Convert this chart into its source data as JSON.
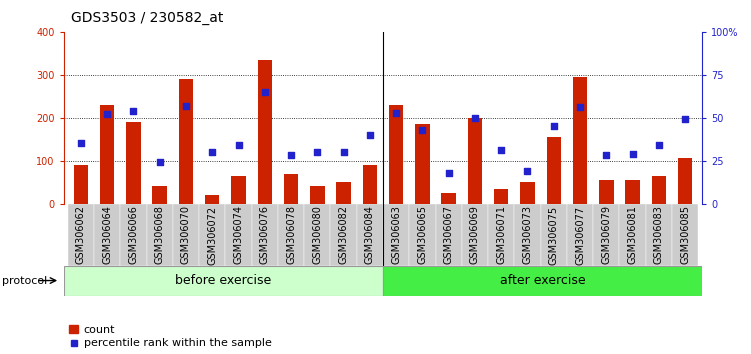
{
  "title": "GDS3503 / 230582_at",
  "categories": [
    "GSM306062",
    "GSM306064",
    "GSM306066",
    "GSM306068",
    "GSM306070",
    "GSM306072",
    "GSM306074",
    "GSM306076",
    "GSM306078",
    "GSM306080",
    "GSM306082",
    "GSM306084",
    "GSM306063",
    "GSM306065",
    "GSM306067",
    "GSM306069",
    "GSM306071",
    "GSM306073",
    "GSM306075",
    "GSM306077",
    "GSM306079",
    "GSM306081",
    "GSM306083",
    "GSM306085"
  ],
  "count_values": [
    90,
    230,
    190,
    40,
    290,
    20,
    65,
    335,
    70,
    40,
    50,
    90,
    230,
    185,
    25,
    200,
    35,
    50,
    155,
    295,
    55,
    55,
    65,
    105
  ],
  "percentile_values": [
    35,
    52,
    54,
    24,
    57,
    30,
    34,
    65,
    28,
    30,
    30,
    40,
    53,
    43,
    18,
    50,
    31,
    19,
    45,
    56,
    28,
    29,
    34,
    49
  ],
  "group1_label": "before exercise",
  "group2_label": "after exercise",
  "group1_count": 12,
  "group2_count": 12,
  "ylim_left": [
    0,
    400
  ],
  "ylim_right": [
    0,
    100
  ],
  "yticks_left": [
    0,
    100,
    200,
    300,
    400
  ],
  "yticks_right": [
    0,
    25,
    50,
    75,
    100
  ],
  "ytick_labels_right": [
    "0",
    "25",
    "50",
    "75",
    "100%"
  ],
  "bar_color": "#CC2200",
  "dot_color": "#2222CC",
  "group1_bg": "#CCFFCC",
  "group2_bg": "#44EE44",
  "xtick_bg": "#CCCCCC",
  "legend_items": [
    "count",
    "percentile rank within the sample"
  ],
  "protocol_label": "protocol",
  "title_fontsize": 10,
  "tick_fontsize": 7,
  "legend_fontsize": 8,
  "protocol_fontsize": 8,
  "group_label_fontsize": 9,
  "bar_width": 0.55
}
